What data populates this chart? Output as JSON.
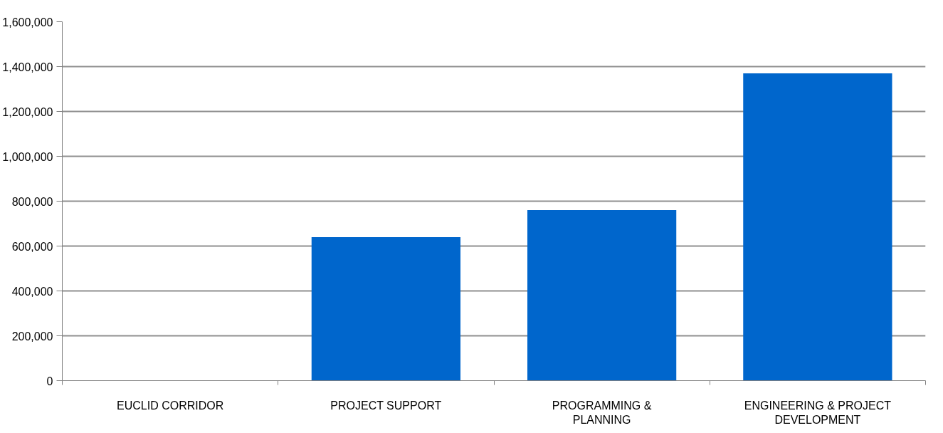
{
  "chart_data": {
    "type": "bar",
    "categories": [
      "EUCLID CORRIDOR",
      "PROJECT SUPPORT",
      "PROGRAMMING & PLANNING",
      "ENGINEERING & PROJECT DEVELOPMENT"
    ],
    "values": [
      0,
      640000,
      760000,
      1370000
    ],
    "color": "#0066cc",
    "ylim": [
      0,
      1600000
    ],
    "yticks": [
      0,
      {
        "value": 200000,
        "label": "200,000"
      },
      {
        "value": 400000,
        "label": "400,000"
      },
      {
        "value": 600000,
        "label": "600,000"
      },
      {
        "value": 800000,
        "label": "800,000"
      },
      {
        "value": 1000000,
        "label": "1,000,000"
      },
      {
        "value": 1200000,
        "label": "1,200,000"
      },
      {
        "value": 1400000,
        "label": "1,400,000"
      },
      {
        "value": 1600000,
        "label": "1,600,000"
      }
    ],
    "grid": "y"
  }
}
